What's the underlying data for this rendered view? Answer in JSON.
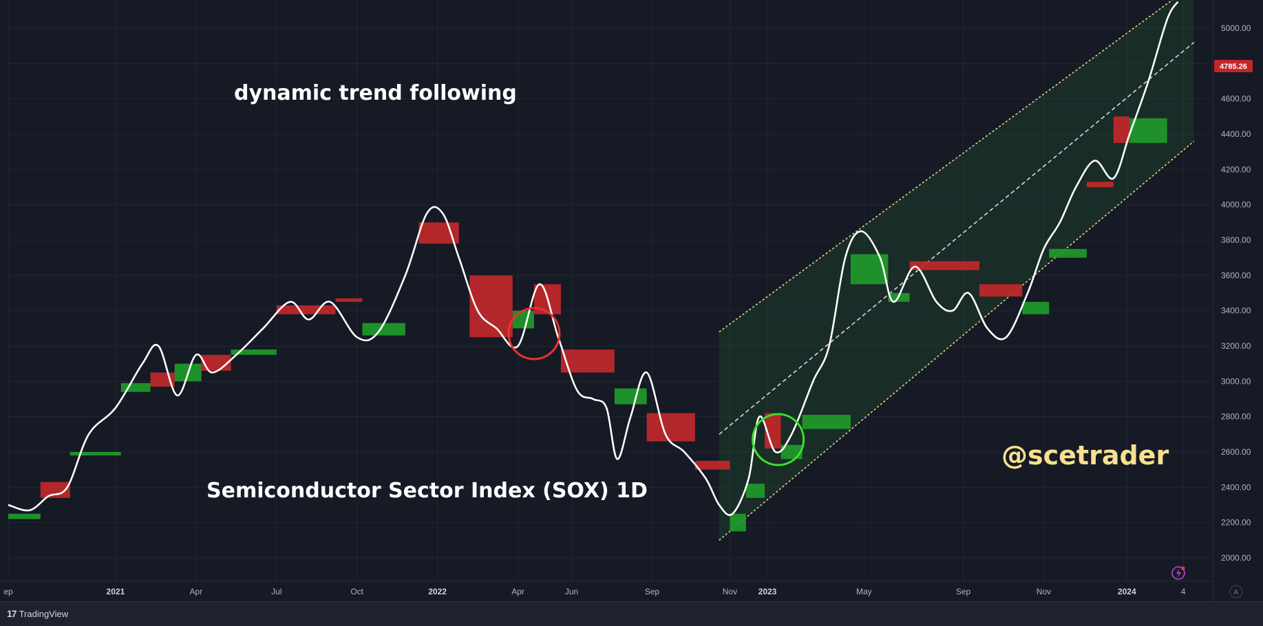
{
  "chart_data": {
    "type": "line",
    "title": "Semiconductor Sector Index (SOX) 1D",
    "subtitle": "dynamic trend following",
    "watermark": "@scetrader",
    "last_price": "4785.26",
    "ylim": [
      1900,
      5150
    ],
    "y_ticks": [
      "5000.00",
      "4800.00",
      "4600.00",
      "4400.00",
      "4200.00",
      "4000.00",
      "3800.00",
      "3600.00",
      "3400.00",
      "3200.00",
      "3000.00",
      "2800.00",
      "2600.00",
      "2400.00",
      "2200.00",
      "2000.00"
    ],
    "x_ticks": [
      {
        "label": "ep",
        "t": 0,
        "bold": false
      },
      {
        "label": "2021",
        "t": 4,
        "bold": true
      },
      {
        "label": "Apr",
        "t": 7,
        "bold": false
      },
      {
        "label": "Jul",
        "t": 10,
        "bold": false
      },
      {
        "label": "Oct",
        "t": 13,
        "bold": false
      },
      {
        "label": "2022",
        "t": 16,
        "bold": true
      },
      {
        "label": "Apr",
        "t": 19,
        "bold": false
      },
      {
        "label": "Jun",
        "t": 21,
        "bold": false
      },
      {
        "label": "Sep",
        "t": 24,
        "bold": false
      },
      {
        "label": "Nov",
        "t": 26.9,
        "bold": false
      },
      {
        "label": "2023",
        "t": 28.3,
        "bold": true
      },
      {
        "label": "May",
        "t": 31.9,
        "bold": false
      },
      {
        "label": "Sep",
        "t": 35.6,
        "bold": false
      },
      {
        "label": "Nov",
        "t": 38.6,
        "bold": false
      },
      {
        "label": "2024",
        "t": 41.7,
        "bold": true
      },
      {
        "label": "4",
        "t": 43.8,
        "bold": false
      }
    ],
    "series": [
      {
        "name": "",
        "color": "#ffffff",
        "points": [
          [
            0,
            2300
          ],
          [
            0.8,
            2270
          ],
          [
            1.5,
            2350
          ],
          [
            2.2,
            2400
          ],
          [
            3,
            2700
          ],
          [
            4,
            2850
          ],
          [
            5,
            3100
          ],
          [
            5.6,
            3200
          ],
          [
            6.3,
            2920
          ],
          [
            7,
            3150
          ],
          [
            7.6,
            3050
          ],
          [
            8.5,
            3150
          ],
          [
            9.5,
            3300
          ],
          [
            10.5,
            3450
          ],
          [
            11.2,
            3350
          ],
          [
            12,
            3450
          ],
          [
            13,
            3250
          ],
          [
            13.8,
            3280
          ],
          [
            14.8,
            3600
          ],
          [
            15.6,
            3950
          ],
          [
            16.2,
            3950
          ],
          [
            16.8,
            3700
          ],
          [
            17.5,
            3400
          ],
          [
            18.2,
            3300
          ],
          [
            19,
            3200
          ],
          [
            19.8,
            3550
          ],
          [
            20.5,
            3250
          ],
          [
            21.2,
            2950
          ],
          [
            21.8,
            2900
          ],
          [
            22.3,
            2850
          ],
          [
            22.7,
            2560
          ],
          [
            23.2,
            2800
          ],
          [
            23.8,
            3050
          ],
          [
            24.5,
            2700
          ],
          [
            25.2,
            2600
          ],
          [
            26,
            2450
          ],
          [
            26.5,
            2300
          ],
          [
            27,
            2250
          ],
          [
            27.6,
            2450
          ],
          [
            28,
            2800
          ],
          [
            28.6,
            2600
          ],
          [
            29.2,
            2700
          ],
          [
            30,
            3000
          ],
          [
            30.6,
            3200
          ],
          [
            31.2,
            3700
          ],
          [
            31.8,
            3850
          ],
          [
            32.5,
            3700
          ],
          [
            33,
            3450
          ],
          [
            33.8,
            3650
          ],
          [
            34.6,
            3450
          ],
          [
            35.2,
            3400
          ],
          [
            35.8,
            3500
          ],
          [
            36.5,
            3300
          ],
          [
            37.2,
            3250
          ],
          [
            38,
            3500
          ],
          [
            38.6,
            3750
          ],
          [
            39.2,
            3900
          ],
          [
            39.8,
            4100
          ],
          [
            40.5,
            4250
          ],
          [
            41.2,
            4150
          ],
          [
            41.8,
            4400
          ],
          [
            42.5,
            4700
          ],
          [
            43.2,
            5050
          ],
          [
            43.6,
            5150
          ]
        ]
      }
    ],
    "cloud": [
      {
        "t0": 0.0,
        "t1": 1.2,
        "top": 2250,
        "bottom": 2220,
        "color": "green"
      },
      {
        "t0": 1.2,
        "t1": 2.3,
        "top": 2430,
        "bottom": 2340,
        "color": "red"
      },
      {
        "t0": 2.3,
        "t1": 4.2,
        "top": 2600,
        "bottom": 2580,
        "color": "green"
      },
      {
        "t0": 4.2,
        "t1": 5.3,
        "top": 2990,
        "bottom": 2940,
        "color": "green"
      },
      {
        "t0": 5.3,
        "t1": 6.2,
        "top": 3050,
        "bottom": 2970,
        "color": "red"
      },
      {
        "t0": 6.2,
        "t1": 7.2,
        "top": 3100,
        "bottom": 3000,
        "color": "green"
      },
      {
        "t0": 7.2,
        "t1": 8.3,
        "top": 3150,
        "bottom": 3060,
        "color": "red"
      },
      {
        "t0": 8.3,
        "t1": 10.0,
        "top": 3180,
        "bottom": 3150,
        "color": "green"
      },
      {
        "t0": 10.0,
        "t1": 12.2,
        "top": 3430,
        "bottom": 3380,
        "color": "red"
      },
      {
        "t0": 12.2,
        "t1": 13.2,
        "top": 3470,
        "bottom": 3450,
        "color": "red"
      },
      {
        "t0": 13.2,
        "t1": 14.8,
        "top": 3330,
        "bottom": 3260,
        "color": "green"
      },
      {
        "t0": 15.3,
        "t1": 16.8,
        "top": 3900,
        "bottom": 3780,
        "color": "red"
      },
      {
        "t0": 17.2,
        "t1": 18.8,
        "top": 3600,
        "bottom": 3250,
        "color": "red"
      },
      {
        "t0": 18.8,
        "t1": 19.6,
        "top": 3400,
        "bottom": 3300,
        "color": "green"
      },
      {
        "t0": 19.6,
        "t1": 20.6,
        "top": 3550,
        "bottom": 3380,
        "color": "red"
      },
      {
        "t0": 20.6,
        "t1": 22.6,
        "top": 3180,
        "bottom": 3050,
        "color": "red"
      },
      {
        "t0": 22.6,
        "t1": 23.8,
        "top": 2960,
        "bottom": 2870,
        "color": "green"
      },
      {
        "t0": 23.8,
        "t1": 25.6,
        "top": 2820,
        "bottom": 2660,
        "color": "red"
      },
      {
        "t0": 25.6,
        "t1": 26.9,
        "top": 2550,
        "bottom": 2500,
        "color": "red"
      },
      {
        "t0": 26.9,
        "t1": 27.5,
        "top": 2250,
        "bottom": 2150,
        "color": "green"
      },
      {
        "t0": 27.5,
        "t1": 28.2,
        "top": 2420,
        "bottom": 2340,
        "color": "green"
      },
      {
        "t0": 28.2,
        "t1": 28.8,
        "top": 2820,
        "bottom": 2620,
        "color": "red"
      },
      {
        "t0": 28.8,
        "t1": 29.6,
        "top": 2640,
        "bottom": 2560,
        "color": "green"
      },
      {
        "t0": 29.6,
        "t1": 31.4,
        "top": 2810,
        "bottom": 2730,
        "color": "green"
      },
      {
        "t0": 31.4,
        "t1": 32.8,
        "top": 3720,
        "bottom": 3550,
        "color": "green"
      },
      {
        "t0": 32.8,
        "t1": 33.6,
        "top": 3500,
        "bottom": 3450,
        "color": "green"
      },
      {
        "t0": 33.6,
        "t1": 36.2,
        "top": 3680,
        "bottom": 3630,
        "color": "red"
      },
      {
        "t0": 36.2,
        "t1": 37.8,
        "top": 3550,
        "bottom": 3480,
        "color": "red"
      },
      {
        "t0": 37.8,
        "t1": 38.8,
        "top": 3450,
        "bottom": 3380,
        "color": "green"
      },
      {
        "t0": 38.8,
        "t1": 40.2,
        "top": 3750,
        "bottom": 3700,
        "color": "green"
      },
      {
        "t0": 40.2,
        "t1": 41.2,
        "top": 4130,
        "bottom": 4100,
        "color": "red"
      },
      {
        "t0": 41.2,
        "t1": 41.8,
        "top": 4500,
        "bottom": 4350,
        "color": "red"
      },
      {
        "t0": 41.8,
        "t1": 43.2,
        "top": 4490,
        "bottom": 4350,
        "color": "green"
      }
    ],
    "channel": {
      "t0": 26.5,
      "t1": 44.2,
      "upper": [
        3280,
        5250
      ],
      "middle": [
        2700,
        4920
      ],
      "lower": [
        2100,
        4360
      ]
    },
    "circles": [
      {
        "t": 19.6,
        "v": 3270,
        "color": "red"
      },
      {
        "t": 28.7,
        "v": 2670,
        "color": "green"
      }
    ],
    "colors": {
      "bull": "#1f9a2a",
      "bear": "#c1282a",
      "price": "#ffffff",
      "watermark": "#f7e08e",
      "channel": "#e8d48a"
    }
  },
  "footer": {
    "brand": "TradingView",
    "logo": "17"
  },
  "corner_label": "A"
}
